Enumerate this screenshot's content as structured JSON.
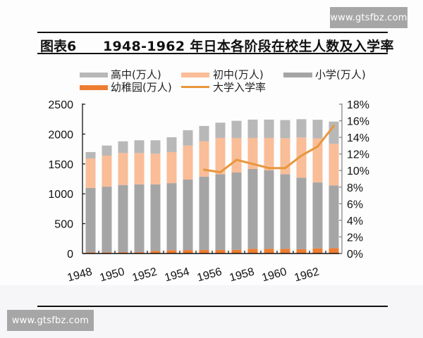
{
  "watermarks": {
    "top_right": "www.gtsfbz.com",
    "bottom_left": "www.gtsfbz.com"
  },
  "header": {
    "figure_label": "图表6",
    "title": "1948-1962 年日本各阶段在校生人数及入学率"
  },
  "legend": {
    "items": [
      {
        "label": "高中(万人)",
        "color": "#b8b8b8",
        "kind": "bar"
      },
      {
        "label": "初中(万人)",
        "color": "#f9bd98",
        "kind": "bar"
      },
      {
        "label": "小学(万人)",
        "color": "#a5a5a5",
        "kind": "bar"
      },
      {
        "label": "幼稚园(万人)",
        "color": "#ed7d31",
        "kind": "bar"
      },
      {
        "label": "大学入学率",
        "color": "#e8963c",
        "kind": "line"
      }
    ]
  },
  "chart_data": {
    "type": "bar",
    "stacked": true,
    "title": "1948-1962 年日本各阶段在校生人数及入学率",
    "xlabel": "",
    "ylabel": "",
    "categories": [
      "1948",
      "1949",
      "1950",
      "1951",
      "1952",
      "1953",
      "1954",
      "1955",
      "1956",
      "1957",
      "1958",
      "1959",
      "1960",
      "1961",
      "1962",
      "1963"
    ],
    "x_tick_labels": [
      "1948",
      "1950",
      "1952",
      "1954",
      "1956",
      "1958",
      "1960",
      "1962"
    ],
    "ylim": [
      0,
      2500
    ],
    "yticks": [
      0,
      500,
      1000,
      1500,
      2000,
      2500
    ],
    "y2lim": [
      0,
      18
    ],
    "y2ticks": [
      "0%",
      "2%",
      "4%",
      "6%",
      "8%",
      "10%",
      "12%",
      "14%",
      "16%",
      "18%"
    ],
    "legend_position": "top",
    "grid": false,
    "series": [
      {
        "key": "kindergarten",
        "name": "幼稚园(万人)",
        "type": "bar",
        "axis": "left",
        "color": "#ed7d31",
        "values": [
          20,
          20,
          22,
          22,
          43,
          55,
          58,
          60,
          60,
          62,
          78,
          78,
          78,
          72,
          86,
          90
        ]
      },
      {
        "key": "primary",
        "name": "小学(万人)",
        "type": "bar",
        "axis": "left",
        "color": "#a5a5a5",
        "values": [
          1079,
          1099,
          1125,
          1136,
          1115,
          1123,
          1180,
          1228,
          1268,
          1294,
          1337,
          1317,
          1250,
          1197,
          1104,
          1049
        ]
      },
      {
        "key": "middle",
        "name": "初中(万人)",
        "type": "bar",
        "axis": "left",
        "color": "#f9bd98",
        "values": [
          493,
          520,
          536,
          525,
          513,
          521,
          570,
          591,
          607,
          579,
          520,
          540,
          602,
          674,
          737,
          698
        ]
      },
      {
        "key": "high",
        "name": "高中(万人)",
        "type": "bar",
        "axis": "left",
        "color": "#b8b8b8",
        "values": [
          107,
          169,
          196,
          213,
          225,
          248,
          257,
          257,
          256,
          287,
          307,
          307,
          305,
          306,
          313,
          372
        ]
      },
      {
        "key": "university-rate",
        "name": "大学入学率",
        "type": "line",
        "axis": "right",
        "unit": "%",
        "color": "#e8963c",
        "values": [
          null,
          null,
          null,
          null,
          null,
          null,
          null,
          10.1,
          9.8,
          11.3,
          10.8,
          10.3,
          10.3,
          11.8,
          12.9,
          15.4
        ]
      }
    ]
  }
}
